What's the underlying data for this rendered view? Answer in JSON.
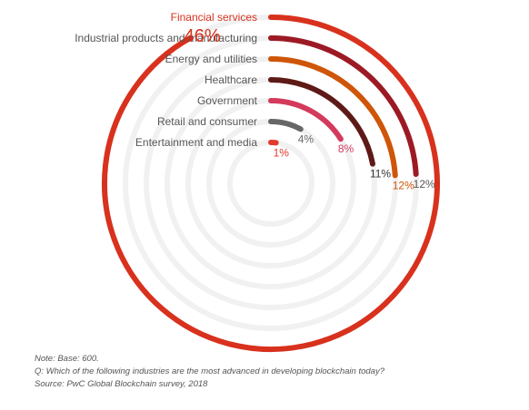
{
  "chart_data": {
    "type": "radial-bar",
    "max_value": 50,
    "series": [
      {
        "category": "Financial services",
        "value": 46,
        "label": "46%",
        "color": "#d8311d",
        "label_color": "#d8311d",
        "category_color": "#d8311d"
      },
      {
        "category": "Industrial products and manufacturing",
        "value": 12,
        "label": "12%",
        "color": "#9c1a24",
        "label_color": "#555555",
        "category_color": "#555555"
      },
      {
        "category": "Energy and utilities",
        "value": 12,
        "label": "12%",
        "color": "#cf5609",
        "label_color": "#cf5609",
        "category_color": "#555555"
      },
      {
        "category": "Healthcare",
        "value": 11,
        "label": "11%",
        "color": "#5e1a17",
        "label_color": "#333333",
        "category_color": "#555555"
      },
      {
        "category": "Government",
        "value": 8,
        "label": "8%",
        "color": "#d43a5c",
        "label_color": "#d43a5c",
        "category_color": "#555555"
      },
      {
        "category": "Retail and consumer",
        "value": 4,
        "label": "4%",
        "color": "#676767",
        "label_color": "#676767",
        "category_color": "#555555"
      },
      {
        "category": "Entertainment and media",
        "value": 1,
        "label": "1%",
        "color": "#e23a2c",
        "label_color": "#e23a2c",
        "category_color": "#555555"
      }
    ],
    "track_color": "#f1f1f1"
  },
  "notes": {
    "base": "Note: Base: 600.",
    "question": "Q: Which of the following industries are the most advanced in developing blockchain today?",
    "source": "Source: PwC Global Blockchain survey, 2018"
  }
}
